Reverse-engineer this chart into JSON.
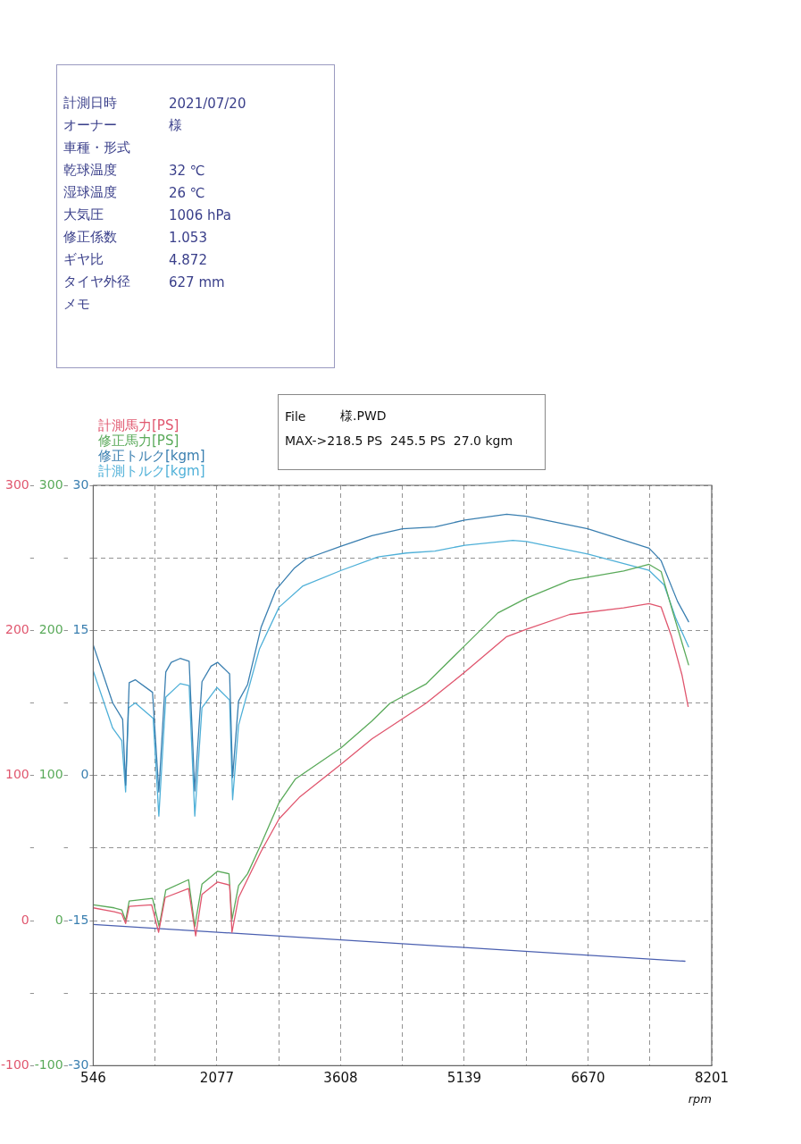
{
  "chart_data": {
    "type": "line",
    "xlabel": "rpm",
    "legend": "top left",
    "grid": true,
    "marker": "none",
    "line_style": "solid",
    "xlim": [
      546,
      8201
    ],
    "xticks": [
      546,
      {
        "value": 1311.5,
        "label": null
      },
      2077,
      {
        "value": 2842.5,
        "label": null
      },
      3608,
      {
        "value": 4373.5,
        "label": null
      },
      5139,
      {
        "value": 5904.5,
        "label": null
      },
      6670,
      {
        "value": 7435.5,
        "label": null
      },
      8201
    ],
    "ylim": [
      -100,
      300
    ],
    "yticks": [
      -100,
      {
        "value": -50,
        "label": null
      },
      0,
      {
        "value": 50,
        "label": null
      },
      100,
      {
        "value": 150,
        "label": null
      },
      200,
      {
        "value": 250,
        "label": null
      },
      300
    ],
    "y2lim": [
      -100,
      300
    ],
    "y2ticks": [
      -100,
      {
        "value": -50,
        "label": null
      },
      0,
      {
        "value": 50,
        "label": null
      },
      100,
      {
        "value": 150,
        "label": null
      },
      200,
      {
        "value": 250,
        "label": null
      },
      300
    ],
    "y3lim": [
      -30,
      30
    ],
    "y3ticks": [
      -30,
      {
        "value": -22.5,
        "label": null
      },
      -15,
      {
        "value": -7.5,
        "label": null
      },
      0,
      {
        "value": 7.5,
        "label": null
      },
      15,
      {
        "value": 22.5,
        "label": null
      },
      30
    ],
    "series": [
      {
        "name": "計測馬力[PS]",
        "color": "#e0566e",
        "axis": "y",
        "x": [
          546,
          805,
          899,
          947,
          991,
          1269,
          1355,
          1436,
          1726,
          1814,
          1892,
          2085,
          2234,
          2263,
          2345,
          2623,
          2846,
          3105,
          3614,
          3995,
          4218,
          4663,
          5145,
          5664,
          5906,
          6443,
          7111,
          7426,
          7575,
          7704,
          7834,
          7909
        ],
        "values": [
          8.8,
          6.1,
          4.7,
          -2.0,
          9.8,
          10.9,
          -8.1,
          15.9,
          22.1,
          -10.6,
          18.0,
          26.6,
          24.5,
          -8.1,
          15.9,
          47.6,
          70.1,
          85.4,
          107.8,
          125.2,
          133.4,
          149.7,
          171.2,
          195.7,
          200.8,
          211.0,
          215.6,
          218.5,
          216.1,
          195.7,
          169.1,
          147.6
        ]
      },
      {
        "name": "修正馬力[PS]",
        "color": "#5aaa5a",
        "axis": "y2",
        "x": [
          546,
          805,
          899,
          947,
          991,
          1280,
          1362,
          1444,
          1726,
          1803,
          1892,
          2085,
          2226,
          2263,
          2345,
          2456,
          2623,
          2846,
          3050,
          3614,
          3995,
          4218,
          4663,
          5145,
          5553,
          5906,
          6443,
          7111,
          7426,
          7575,
          7723,
          7915
        ],
        "values": [
          10.9,
          8.8,
          7.4,
          0,
          13.5,
          15.3,
          -4,
          21.1,
          28.2,
          -4,
          25.1,
          34.0,
          32.3,
          0.6,
          24.1,
          32.3,
          52.7,
          81.3,
          97.7,
          119.1,
          137.5,
          149.7,
          163.0,
          189.5,
          212.0,
          222.2,
          234.5,
          241.0,
          245.5,
          240.6,
          212,
          176.3
        ]
      },
      {
        "name": "修正トルク[kgm]",
        "color": "#3a7fb0",
        "axis": "y3",
        "x": [
          546,
          787,
          910,
          947,
          991,
          1066,
          1280,
          1358,
          1444,
          1511,
          1622,
          1733,
          1803,
          1892,
          2004,
          2085,
          2234,
          2271,
          2345,
          2456,
          2623,
          2808,
          3031,
          3180,
          3614,
          3995,
          4374,
          4774,
          5145,
          5664,
          5906,
          6666,
          7426,
          7575,
          7778,
          7915
        ],
        "values": [
          13.5,
          7.5,
          5.8,
          -1.0,
          9.6,
          9.9,
          8.6,
          -1.7,
          10.7,
          11.7,
          12.1,
          11.8,
          -1.6,
          9.7,
          11.3,
          11.7,
          10.5,
          -0.2,
          7.7,
          9.4,
          15.3,
          19.2,
          21.4,
          22.4,
          23.7,
          24.8,
          25.5,
          25.7,
          26.4,
          27.0,
          26.8,
          25.5,
          23.5,
          22.2,
          18.0,
          15.9
        ]
      },
      {
        "name": "計測トルク[kgm]",
        "color": "#4fb0d8",
        "axis": "y3",
        "x": [
          546,
          787,
          899,
          947,
          983,
          1066,
          1288,
          1358,
          1444,
          1622,
          1733,
          1803,
          1892,
          2078,
          2234,
          2271,
          2345,
          2604,
          2846,
          3142,
          3614,
          4070,
          4422,
          4774,
          5145,
          5739,
          5906,
          6666,
          7426,
          7612,
          7759,
          7915
        ],
        "values": [
          10.8,
          4.9,
          3.6,
          -1.7,
          7.0,
          7.5,
          5.9,
          -4.2,
          8.1,
          9.5,
          9.3,
          -4.2,
          7.0,
          9.1,
          7.8,
          -2.5,
          5.2,
          13.1,
          17.4,
          19.6,
          21.2,
          22.6,
          23.0,
          23.2,
          23.8,
          24.3,
          24.2,
          22.9,
          21.2,
          19.7,
          16.2,
          13.3
        ]
      },
      {
        "color": "#4a5fb0",
        "axis": "y3",
        "x": [
          546,
          7870
        ],
        "values": [
          -15.4,
          -19.2
        ]
      }
    ],
    "annotations": [
      "計測日時 2021/07/20",
      "オーナー 様",
      "車種・形式",
      "乾球温度 32 ℃",
      "湿球温度 26 ℃",
      "大気圧 1006 hPa",
      "修正係数 1.053",
      "ギヤ比 4.872",
      "タイヤ外径 627 mm",
      "メモ",
      "File 様.PWD",
      "MAX->218.5 PS  245.5 PS  27.0 kgm"
    ]
  }
}
